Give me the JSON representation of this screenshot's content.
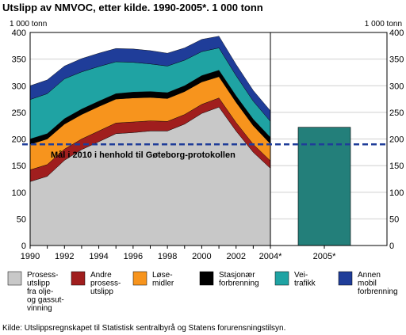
{
  "chart_data": {
    "type": "area",
    "title": "Utslipp av NMVOC, etter kilde. 1990-2005*. 1 000 tonn",
    "unit_label": "1 000 tonn",
    "x": [
      1990,
      1991,
      1992,
      1993,
      1994,
      1995,
      1996,
      1997,
      1998,
      1999,
      2000,
      2001,
      2002,
      2003,
      2004
    ],
    "x_tick_labels": [
      "1990",
      "1992",
      "1994",
      "1996",
      "1998",
      "2000",
      "2002",
      "2004*"
    ],
    "bar_label": "2005*",
    "ylim": [
      0,
      400
    ],
    "y_ticks": [
      0,
      50,
      100,
      150,
      200,
      250,
      300,
      350,
      400
    ],
    "grid": true,
    "legend_position": "bottom",
    "series": [
      {
        "name": "Prosessutslipp fra olje- og gassutvinning",
        "legend_lines": [
          "Prosess-",
          "utslipp",
          "fra olje-",
          "og gassut-",
          "vinning"
        ],
        "color": "#c8c8c8",
        "values": [
          120,
          130,
          160,
          180,
          195,
          210,
          212,
          215,
          215,
          228,
          248,
          260,
          215,
          175,
          145
        ]
      },
      {
        "name": "Andre prosessutslipp",
        "legend_lines": [
          "Andre",
          "prosess-",
          "utslipp"
        ],
        "color": "#a01e1e",
        "values": [
          22,
          22,
          21,
          20,
          20,
          20,
          20,
          19,
          18,
          18,
          17,
          17,
          16,
          15,
          14
        ]
      },
      {
        "name": "Løsemidler",
        "legend_lines": [
          "Løse-",
          "midler"
        ],
        "color": "#f7941d",
        "values": [
          48,
          48,
          47,
          46,
          46,
          45,
          45,
          44,
          43,
          43,
          42,
          40,
          38,
          35,
          32
        ]
      },
      {
        "name": "Stasjonær forbrenning",
        "legend_lines": [
          "Stasjonær",
          "forbrenning"
        ],
        "color": "#000000",
        "values": [
          10,
          10,
          10,
          10,
          10,
          10,
          11,
          11,
          11,
          11,
          12,
          12,
          12,
          12,
          12
        ]
      },
      {
        "name": "Veitrafikk",
        "legend_lines": [
          "Vei-",
          "trafikk"
        ],
        "color": "#1fa3a3",
        "values": [
          74,
          75,
          75,
          70,
          65,
          60,
          56,
          52,
          50,
          48,
          45,
          42,
          38,
          34,
          30
        ]
      },
      {
        "name": "Annen mobil forbrenning",
        "legend_lines": [
          "Annen",
          "mobil",
          "forbrenning"
        ],
        "color": "#1f3d99",
        "values": [
          26,
          26,
          24,
          25,
          25,
          25,
          25,
          25,
          24,
          23,
          23,
          22,
          21,
          20,
          20
        ]
      }
    ],
    "bar_2005": {
      "label": "2005*",
      "value": 222,
      "color": "#237f7a"
    },
    "goal_line": {
      "value": 190,
      "label": "Mål i 2010 i henhold til Gøteborg-protokollen",
      "color": "#1f3d99"
    },
    "source_note": "Kilde: Utslippsregnskapet til Statistisk sentralbyrå og Statens forurensningstilsyn."
  }
}
